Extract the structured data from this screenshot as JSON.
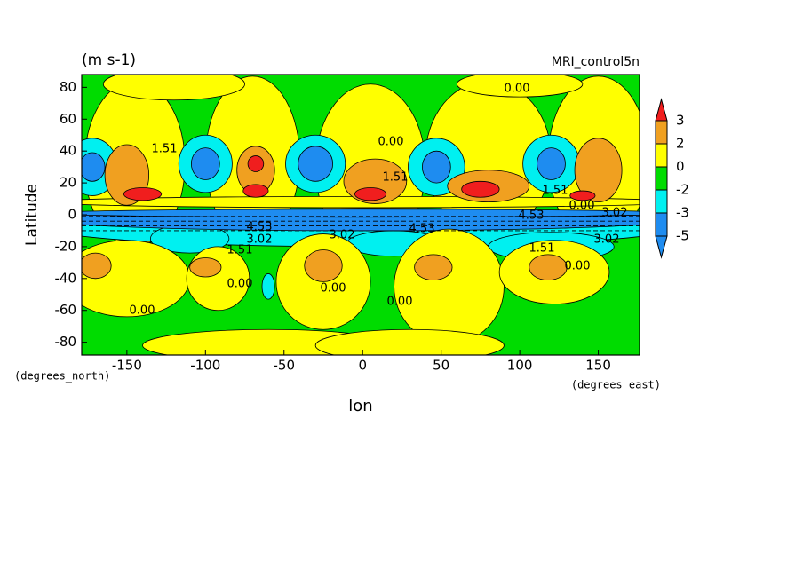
{
  "chart_data": {
    "type": "contour",
    "title": "(m s-1)",
    "subtitle": "MRI_control5n",
    "x_label": "lon",
    "y_label": "Latitude",
    "x_unit": "(degrees_east)",
    "y_unit": "(degrees_north)",
    "xlim": [
      -178.75,
      176.25
    ],
    "ylim": [
      -88,
      88
    ],
    "xticks": [
      -150,
      -100,
      -50,
      0,
      50,
      100,
      150
    ],
    "yticks": [
      -80,
      -60,
      -40,
      -20,
      0,
      20,
      40,
      60,
      80
    ],
    "colorbar": {
      "levels": [
        -5,
        -3,
        -2,
        0,
        2,
        3
      ],
      "colors": [
        "#1e8cf0",
        "#1e8cf0",
        "#00f0f0",
        "#00dc00",
        "#ffff00",
        "#f0a020",
        "#f01e1e"
      ]
    },
    "contour_labels": [
      "0.00",
      "1.51",
      "3.02",
      "4.53"
    ]
  }
}
